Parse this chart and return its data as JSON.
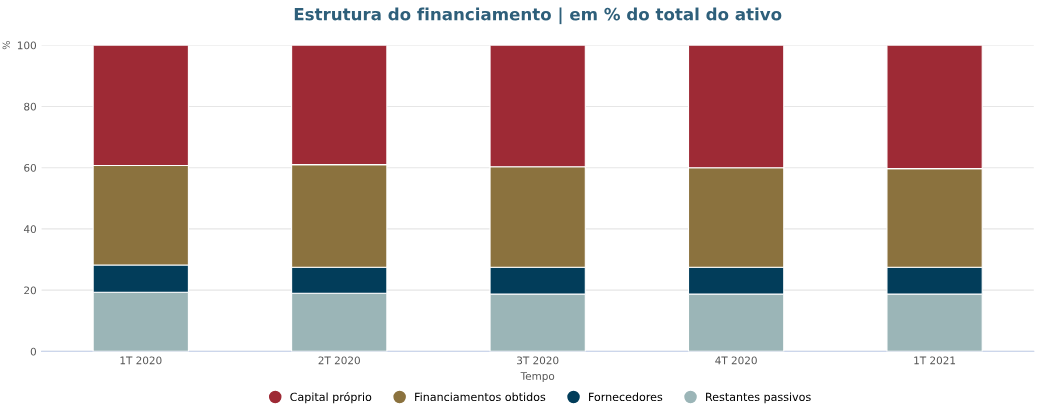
{
  "chart_data": {
    "type": "bar",
    "title": "Estrutura do financiamento | em % do total do ativo",
    "xlabel": "Tempo",
    "ylabel": "%",
    "categories": [
      "1T 2020",
      "2T 2020",
      "3T 2020",
      "4T 2020",
      "1T 2021"
    ],
    "stacked": true,
    "series": [
      {
        "name": "Restantes passivos",
        "color": "#9bb5b7",
        "values": [
          19.3,
          19.0,
          18.7,
          18.7,
          18.7
        ]
      },
      {
        "name": "Fornecedores",
        "color": "#023d5a",
        "values": [
          8.9,
          8.5,
          8.8,
          8.8,
          8.8
        ]
      },
      {
        "name": "Financiamentos obtidos",
        "color": "#8b723e",
        "values": [
          32.5,
          33.5,
          32.8,
          32.5,
          32.2
        ]
      },
      {
        "name": "Capital próprio",
        "color": "#9e2a35",
        "values": [
          39.3,
          39.0,
          39.7,
          40.0,
          40.3
        ]
      }
    ],
    "ylim": [
      0,
      100
    ],
    "yticks": [
      0,
      20,
      40,
      60,
      80,
      100
    ],
    "grid": "y",
    "legend": "bottom"
  }
}
